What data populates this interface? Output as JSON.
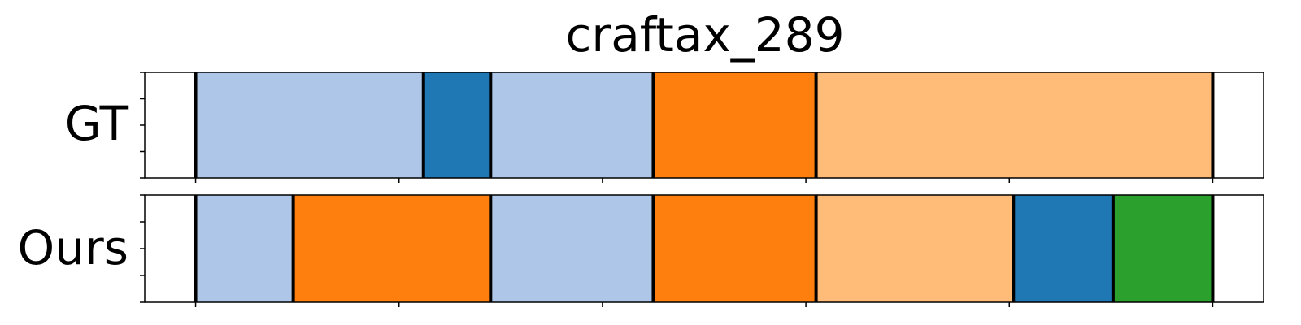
{
  "chart_data": {
    "type": "segmentation-timeline",
    "title": "craftax_289",
    "x_range": [
      0,
      550
    ],
    "rows": [
      {
        "label": "GT",
        "segments": [
          {
            "start": 25,
            "end": 137,
            "color": "#aec7e8"
          },
          {
            "start": 137,
            "end": 170,
            "color": "#1f77b4"
          },
          {
            "start": 170,
            "end": 250,
            "color": "#aec7e8"
          },
          {
            "start": 250,
            "end": 330,
            "color": "#ff7f0e"
          },
          {
            "start": 330,
            "end": 525,
            "color": "#ffbb78"
          }
        ]
      },
      {
        "label": "Ours",
        "segments": [
          {
            "start": 25,
            "end": 73,
            "color": "#aec7e8"
          },
          {
            "start": 73,
            "end": 170,
            "color": "#ff7f0e"
          },
          {
            "start": 170,
            "end": 250,
            "color": "#aec7e8"
          },
          {
            "start": 250,
            "end": 330,
            "color": "#ff7f0e"
          },
          {
            "start": 330,
            "end": 427,
            "color": "#ffbb78"
          },
          {
            "start": 427,
            "end": 476,
            "color": "#1f77b4"
          },
          {
            "start": 476,
            "end": 525,
            "color": "#2ca02c"
          }
        ]
      }
    ],
    "x_ticks": [
      25,
      125,
      225,
      325,
      425,
      525
    ],
    "grid": false
  }
}
